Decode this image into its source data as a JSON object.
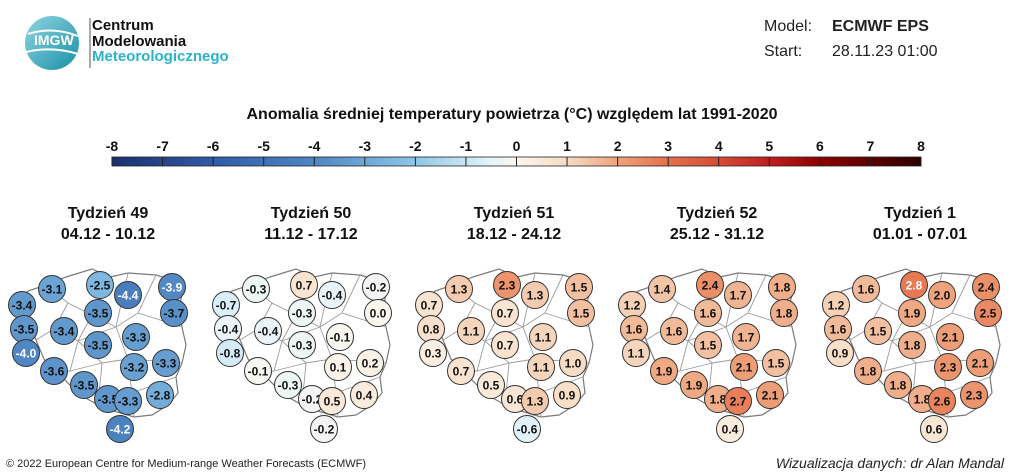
{
  "logo": {
    "mark_lines": [
      "IMGW"
    ],
    "lines": [
      "Centrum",
      "Modelowania",
      "Meteorologicznego"
    ]
  },
  "model": {
    "model_label": "Model:",
    "model_value": "ECMWF EPS",
    "start_label": "Start:",
    "start_value": "28.11.23 01:00"
  },
  "title": "Anomalia średniej temperatury powietrza (°C) względem lat 1991-2020",
  "colorscale": {
    "ticks": [
      "-8",
      "-7",
      "-6",
      "-5",
      "-4",
      "-3",
      "-2",
      "-1",
      "0",
      "1",
      "2",
      "3",
      "4",
      "5",
      "6",
      "7",
      "8"
    ],
    "min": -8,
    "max": 8,
    "stops": [
      {
        "v": -8,
        "color": "#1c2f6e"
      },
      {
        "v": -6,
        "color": "#2f5ba7"
      },
      {
        "v": -4,
        "color": "#4f86c3"
      },
      {
        "v": -2,
        "color": "#8ec7e8"
      },
      {
        "v": -0.5,
        "color": "#e6f4fa"
      },
      {
        "v": 0,
        "color": "#fbf6ee"
      },
      {
        "v": 1,
        "color": "#f6dcc4"
      },
      {
        "v": 2,
        "color": "#eea37c"
      },
      {
        "v": 3,
        "color": "#e5704b"
      },
      {
        "v": 4,
        "color": "#d54c36"
      },
      {
        "v": 5,
        "color": "#c11e1e"
      },
      {
        "v": 6,
        "color": "#8f0000"
      },
      {
        "v": 8,
        "color": "#2a0000"
      }
    ]
  },
  "weeks": [
    {
      "title": "Tydzień 49",
      "dates": "04.12 - 10.12",
      "values": [
        "-3.1",
        "-2.5",
        "-3.9",
        "-3.4",
        "-4.4",
        "-3.7",
        "-3.5",
        "-3.4",
        "-3.5",
        "-3.3",
        "-4.0",
        "-3.5",
        "-3.3",
        "-3.6",
        "-3.2",
        "-3.5",
        "-3.5",
        "-3.3",
        "-2.8",
        "-4.2"
      ]
    },
    {
      "title": "Tydzień 50",
      "dates": "11.12 - 17.12",
      "values": [
        "-0.3",
        "0.7",
        "-0.2",
        "-0.7",
        "-0.4",
        "0.0",
        "-0.4",
        "-0.4",
        "-0.3",
        "-0.1",
        "-0.8",
        "-0.3",
        "0.2",
        "-0.1",
        "0.1",
        "-0.3",
        "-0.2",
        "0.5",
        "0.4",
        "-0.2"
      ]
    },
    {
      "title": "Tydzień 51",
      "dates": "18.12 - 24.12",
      "values": [
        "1.3",
        "2.3",
        "1.5",
        "0.7",
        "1.3",
        "1.5",
        "0.8",
        "1.1",
        "0.7",
        "1.1",
        "0.3",
        "0.7",
        "1.0",
        "0.7",
        "1.1",
        "0.5",
        "0.6",
        "1.3",
        "0.9",
        "-0.6"
      ]
    },
    {
      "title": "Tydzień 52",
      "dates": "25.12 - 31.12",
      "values": [
        "1.4",
        "2.4",
        "1.8",
        "1.2",
        "1.7",
        "1.8",
        "1.6",
        "1.6",
        "1.6",
        "1.7",
        "1.1",
        "1.5",
        "1.5",
        "1.9",
        "2.1",
        "1.9",
        "1.8",
        "2.7",
        "2.1",
        "0.4"
      ]
    },
    {
      "title": "Tydzień 1",
      "dates": "01.01 - 07.01",
      "values": [
        "1.6",
        "2.8",
        "2.4",
        "1.2",
        "2.0",
        "2.5",
        "1.6",
        "1.5",
        "1.9",
        "2.1",
        "0.9",
        "1.8",
        "2.1",
        "1.8",
        "2.3",
        "1.8",
        "1.8",
        "2.6",
        "2.3",
        "0.6"
      ]
    }
  ],
  "copyright": "© 2022 European Centre for Medium-range Weather Forecasts (ECMWF)",
  "credit": "Wizualizacja danych: dr Alan Mandal"
}
